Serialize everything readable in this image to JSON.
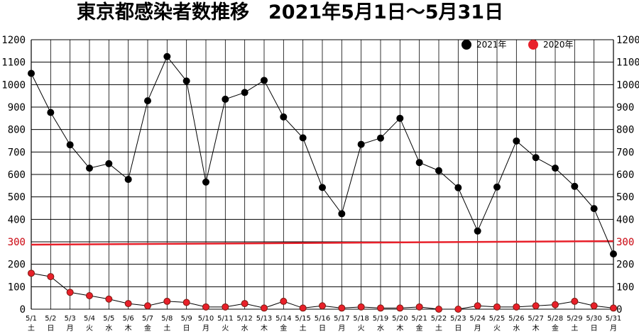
{
  "chart_data": {
    "type": "line",
    "title": "東京都感染者数推移　2021年5月1日～5月31日",
    "xlabel": "",
    "ylabel": "",
    "ylim": [
      0,
      1200
    ],
    "yticks": [
      0,
      100,
      200,
      300,
      400,
      500,
      600,
      700,
      800,
      900,
      1000,
      1100,
      1200
    ],
    "grid": true,
    "legend_position": "top-right",
    "categories": [
      "5/1",
      "5/2",
      "5/3",
      "5/4",
      "5/5",
      "5/6",
      "5/7",
      "5/8",
      "5/9",
      "5/10",
      "5/11",
      "5/12",
      "5/13",
      "5/14",
      "5/15",
      "5/16",
      "5/17",
      "5/18",
      "5/19",
      "5/20",
      "5/21",
      "5/22",
      "5/23",
      "5/24",
      "5/25",
      "5/26",
      "5/27",
      "5/28",
      "5/29",
      "5/30",
      "5/31"
    ],
    "weekdays": [
      "土",
      "日",
      "月",
      "火",
      "水",
      "木",
      "金",
      "土",
      "日",
      "月",
      "火",
      "水",
      "木",
      "金",
      "土",
      "日",
      "月",
      "火",
      "水",
      "木",
      "金",
      "土",
      "日",
      "月",
      "火",
      "水",
      "木",
      "金",
      "土",
      "日",
      "月"
    ],
    "series": [
      {
        "name": "2021年",
        "color": "#000000",
        "values": [
          1050,
          876,
          732,
          628,
          648,
          578,
          928,
          1125,
          1016,
          566,
          935,
          965,
          1019,
          856,
          763,
          542,
          425,
          734,
          762,
          850,
          653,
          617,
          541,
          348,
          544,
          749,
          675,
          628,
          547,
          448,
          246
        ]
      },
      {
        "name": "2020年",
        "color": "#e8202a",
        "values": [
          160,
          145,
          75,
          60,
          45,
          25,
          15,
          35,
          30,
          10,
          10,
          25,
          5,
          35,
          5,
          15,
          5,
          10,
          5,
          5,
          10,
          0,
          0,
          15,
          10,
          10,
          15,
          20,
          35,
          15,
          5
        ]
      }
    ],
    "reference_line": {
      "value": 300,
      "label": "300",
      "color": "#e8202a"
    }
  }
}
